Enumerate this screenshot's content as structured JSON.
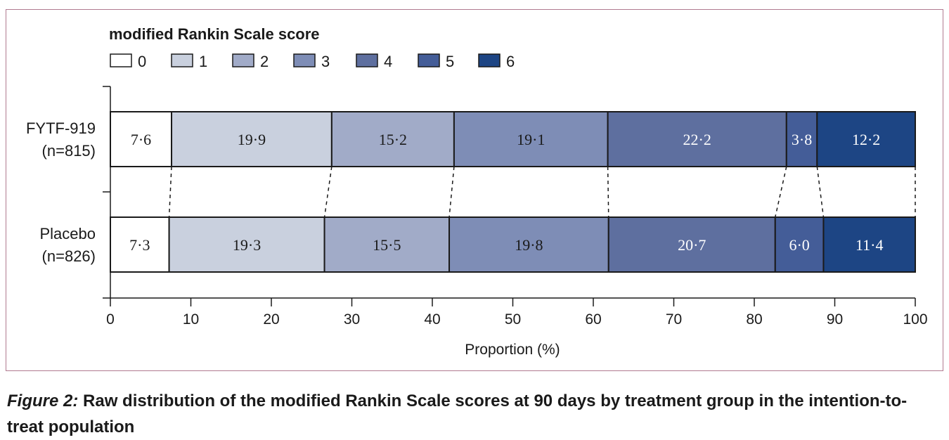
{
  "chart_data": {
    "type": "bar",
    "orientation": "horizontal",
    "stacked": true,
    "legend_title": "modified Rankin Scale score",
    "legend_placement": "top-left",
    "categories": [
      {
        "label_line1": "FYTF-919",
        "label_line2": "(n=815)"
      },
      {
        "label_line1": "Placebo",
        "label_line2": "(n=826)"
      }
    ],
    "series": [
      {
        "name": "0",
        "values": [
          7.6,
          7.3
        ],
        "labels": [
          "7·6",
          "7·3"
        ],
        "color": "#ffffff",
        "text_color": "#1a1a1a"
      },
      {
        "name": "1",
        "values": [
          19.9,
          19.3
        ],
        "labels": [
          "19·9",
          "19·3"
        ],
        "color": "#c9d0de",
        "text_color": "#1a1a1a"
      },
      {
        "name": "2",
        "values": [
          15.2,
          15.5
        ],
        "labels": [
          "15·2",
          "15·5"
        ],
        "color": "#a1abc8",
        "text_color": "#1a1a1a"
      },
      {
        "name": "3",
        "values": [
          19.1,
          19.8
        ],
        "labels": [
          "19·1",
          "19·8"
        ],
        "color": "#7e8db6",
        "text_color": "#1a1a1a"
      },
      {
        "name": "4",
        "values": [
          22.2,
          20.7
        ],
        "labels": [
          "22·2",
          "20·7"
        ],
        "color": "#5e6f9f",
        "text_color": "#ffffff"
      },
      {
        "name": "5",
        "values": [
          3.8,
          6.0
        ],
        "labels": [
          "3·8",
          "6·0"
        ],
        "color": "#445d98",
        "text_color": "#ffffff"
      },
      {
        "name": "6",
        "values": [
          12.2,
          11.4
        ],
        "labels": [
          "12·2",
          "11·4"
        ],
        "color": "#1d4584",
        "text_color": "#ffffff"
      }
    ],
    "xlim": [
      0,
      100
    ],
    "xticks": [
      0,
      10,
      20,
      30,
      40,
      50,
      60,
      70,
      80,
      90,
      100
    ],
    "xlabel": "Proportion (%)",
    "ylabel": "",
    "connectors": "dashed"
  },
  "caption": {
    "lead": "Figure 2:",
    "text": " Raw distribution of the modified Rankin Scale scores at 90 days by treatment group in the intention-to-treat population"
  }
}
